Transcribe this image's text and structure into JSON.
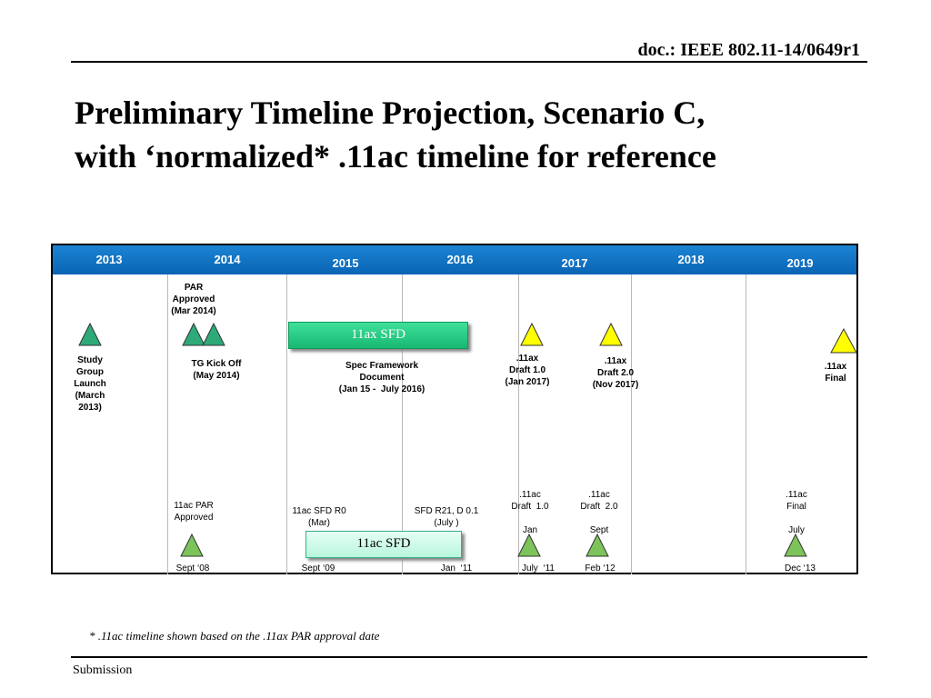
{
  "doc_id": "doc.: IEEE 802.11-14/0649r1",
  "title_line1": "Preliminary Timeline Projection, Scenario C,",
  "title_line2": "with ‘normalized* .11ac timeline for reference",
  "years": [
    "2013",
    "2014",
    "2015",
    "2016",
    "2017",
    "2018",
    "2019"
  ],
  "ax_milestones": {
    "study_group": "Study\nGroup\nLaunch\n(March\n2013)",
    "par": "PAR\nApproved\n(Mar 2014)",
    "tg_kickoff": "TG Kick Off\n(May 2014)",
    "spec_framework": "Spec Framework\nDocument\n(Jan 15 -  July 2016)",
    "draft1": ".11ax\nDraft 1.0\n(Jan 2017)",
    "draft2": ".11ax\nDraft 2.0\n(Nov 2017)",
    "final": ".11ax\nFinal"
  },
  "ac_milestones": {
    "par": "11ac PAR\nApproved",
    "sfd_r0": "11ac SFD R0\n(Mar)",
    "sfd_r21": "SFD R21, D 0.1\n(July )",
    "draft1": ".11ac\nDraft  1.0\n\nJan",
    "draft2": ".11ac\nDraft  2.0\n\nSept",
    "final": ".11ac\nFinal\n\nJuly"
  },
  "ac_dates": [
    "Sept ‘08",
    "Sept ‘09",
    "Jan  ‘11",
    "July  ‘11",
    "Feb ‘12",
    "Dec ‘13"
  ],
  "sfd_ax": "11ax SFD",
  "sfd_ac": "11ac SFD",
  "footnote": "* .11ac timeline shown based on the .11ax PAR approval date",
  "submission": "Submission",
  "colors": {
    "header": "#0a64b4",
    "green_marker": "#2eaa78",
    "yellow_marker": "#ffff00",
    "light_green_marker": "#7cc45a"
  }
}
